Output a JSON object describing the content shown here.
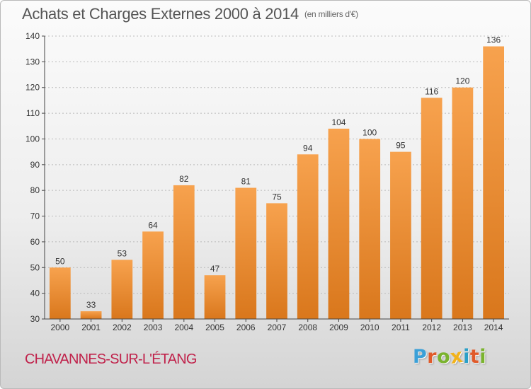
{
  "header": {
    "title": "Achats et Charges Externes 2000 à 2014",
    "unit": "(en milliers d'€)"
  },
  "footer": {
    "city": "CHAVANNES-SUR-L'ÉTANG",
    "logo_letters": [
      "P",
      "r",
      "o",
      "x",
      "i",
      "t",
      "i"
    ],
    "logo_colors": [
      "#3aa0d8",
      "#e05a2a",
      "#7ab32e",
      "#f2b21a",
      "#2aa0c8",
      "#e05a2a",
      "#7ab32e"
    ]
  },
  "colors": {
    "bar_light": "#f7a24e",
    "bar_dark": "#d9771c",
    "axis": "#444444",
    "grid": "#bbbbbb",
    "city": "#c0224b"
  },
  "chart_data": {
    "type": "bar",
    "categories": [
      "2000",
      "2001",
      "2002",
      "2003",
      "2004",
      "2005",
      "2006",
      "2007",
      "2008",
      "2009",
      "2010",
      "2011",
      "2012",
      "2013",
      "2014"
    ],
    "values": [
      50,
      33,
      53,
      64,
      82,
      47,
      81,
      75,
      94,
      104,
      100,
      95,
      116,
      120,
      136
    ],
    "title": "Achats et Charges Externes 2000 à 2014",
    "ylim": [
      30,
      140
    ],
    "yticks": [
      30,
      40,
      50,
      60,
      70,
      80,
      90,
      100,
      110,
      120,
      130,
      140
    ],
    "grid": "horizontal-dashed"
  }
}
